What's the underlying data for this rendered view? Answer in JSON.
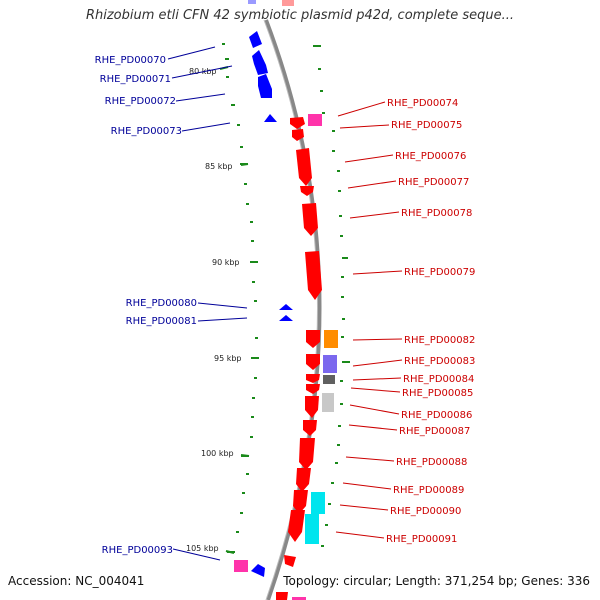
{
  "title": "Rhizobium etli CFN 42 symbiotic plasmid p42d, complete seque...",
  "footer": {
    "accession_label": "Accession:",
    "accession": "NC_004041",
    "topology_label": "Topology:",
    "topology": "circular",
    "length_label": "Length:",
    "length": "371,254 bp",
    "genes_label": "Genes:",
    "genes": "336"
  },
  "colors": {
    "forward": "#ff0000",
    "reverse": "#0000ff",
    "forward_label": "#cc0000",
    "reverse_label": "#000099",
    "backbone": "#888888",
    "gc_dots": "#1a8a1a"
  },
  "ticks": [
    {
      "kbp": 80,
      "label": "80 kbp"
    },
    {
      "kbp": 85,
      "label": "85 kbp"
    },
    {
      "kbp": 90,
      "label": "90 kbp"
    },
    {
      "kbp": 95,
      "label": "95 kbp"
    },
    {
      "kbp": 100,
      "label": "100 kbp"
    },
    {
      "kbp": 105,
      "label": "105 kbp"
    }
  ],
  "reverse_genes": [
    {
      "id": "RHE_PD00070"
    },
    {
      "id": "RHE_PD00071"
    },
    {
      "id": "RHE_PD00072"
    },
    {
      "id": "RHE_PD00073"
    },
    {
      "id": "RHE_PD00080"
    },
    {
      "id": "RHE_PD00081"
    },
    {
      "id": "RHE_PD00093"
    }
  ],
  "forward_genes": [
    {
      "id": "RHE_PD00074"
    },
    {
      "id": "RHE_PD00075"
    },
    {
      "id": "RHE_PD00076"
    },
    {
      "id": "RHE_PD00077"
    },
    {
      "id": "RHE_PD00078"
    },
    {
      "id": "RHE_PD00079"
    },
    {
      "id": "RHE_PD00082"
    },
    {
      "id": "RHE_PD00083"
    },
    {
      "id": "RHE_PD00084"
    },
    {
      "id": "RHE_PD00085"
    },
    {
      "id": "RHE_PD00086"
    },
    {
      "id": "RHE_PD00087"
    },
    {
      "id": "RHE_PD00088"
    },
    {
      "id": "RHE_PD00089"
    },
    {
      "id": "RHE_PD00090"
    },
    {
      "id": "RHE_PD00091"
    }
  ]
}
